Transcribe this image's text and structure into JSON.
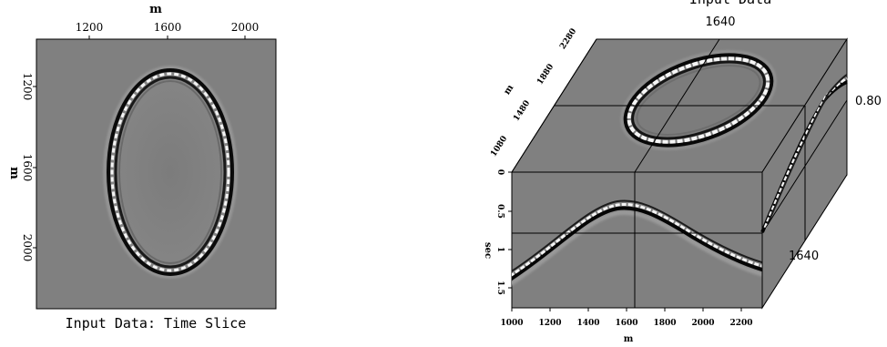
{
  "left_panel": {
    "caption": "Input Data: Time Slice",
    "x_axis_label": "m",
    "x_ticks": [
      "1200",
      "1600",
      "2000"
    ],
    "y_axis_label": "m",
    "y_ticks": [
      "1200",
      "1600",
      "2000"
    ]
  },
  "right_panel": {
    "title": "Input Data",
    "x_axis_label": "m",
    "x_ticks": [
      "1000",
      "1200",
      "1400",
      "1600",
      "1800",
      "2000",
      "2200"
    ],
    "time_axis_label": "sec",
    "time_ticks": [
      "0",
      "0.5",
      "1",
      "1.5"
    ],
    "depth_axis_label": "m",
    "depth_ticks": [
      "1080",
      "1480",
      "1880",
      "2280"
    ],
    "slice_x_value": "1640",
    "slice_time_value": "0.80",
    "slice_y_value": "1640"
  },
  "colors": {
    "background_gray": "#808080",
    "frame": "#000000"
  }
}
